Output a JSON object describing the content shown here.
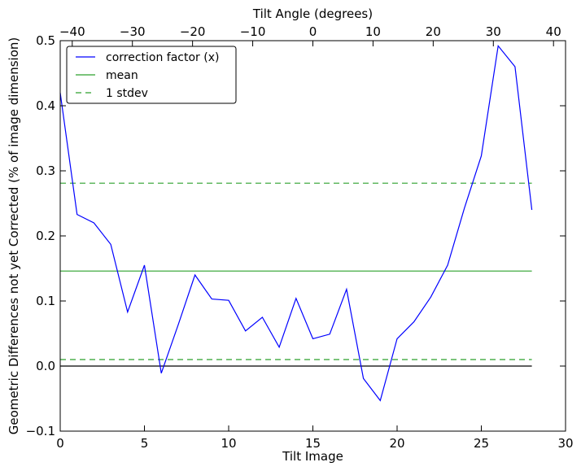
{
  "chart_data": {
    "type": "line",
    "xlabel": "Tilt Image",
    "ylabel": "Geometric Differences not yet Corrected (% of image dimension)",
    "top_xlabel": "Tilt Angle (degrees)",
    "xlim": [
      0,
      30
    ],
    "ylim": [
      -0.1,
      0.5
    ],
    "top_xlim": [
      -42,
      42
    ],
    "x_ticks": [
      0,
      5,
      10,
      15,
      20,
      25,
      30
    ],
    "x_tick_labels": [
      "0",
      "5",
      "10",
      "15",
      "20",
      "25",
      "30"
    ],
    "y_ticks": [
      -0.1,
      0.0,
      0.1,
      0.2,
      0.3,
      0.4,
      0.5
    ],
    "y_tick_labels": [
      "−0.1",
      "0.0",
      "0.1",
      "0.2",
      "0.3",
      "0.4",
      "0.5"
    ],
    "top_ticks": [
      -40,
      -30,
      -20,
      -10,
      0,
      10,
      20,
      30,
      40
    ],
    "top_tick_labels": [
      "−40",
      "−30",
      "−20",
      "−10",
      "0",
      "10",
      "20",
      "30",
      "40"
    ],
    "grid": false,
    "legend_position": "top-left",
    "series": [
      {
        "name": "correction factor (x)",
        "color": "#0000ff",
        "style": "solid",
        "x": [
          0,
          1,
          2,
          3,
          4,
          5,
          6,
          7,
          8,
          9,
          10,
          11,
          12,
          13,
          14,
          15,
          16,
          17,
          18,
          19,
          20,
          21,
          22,
          23,
          24,
          25,
          26,
          27,
          28
        ],
        "values": [
          0.42,
          0.233,
          0.22,
          0.187,
          0.083,
          0.155,
          -0.011,
          0.063,
          0.14,
          0.103,
          0.101,
          0.054,
          0.075,
          0.029,
          0.104,
          0.042,
          0.049,
          0.118,
          -0.019,
          -0.053,
          0.042,
          0.068,
          0.106,
          0.155,
          0.243,
          0.323,
          0.492,
          0.46,
          0.24
        ]
      },
      {
        "name": "mean",
        "color": "#2ca02c",
        "style": "solid",
        "x": [
          0,
          28
        ],
        "values": [
          0.146,
          0.146
        ]
      },
      {
        "name": "1 stdev",
        "color": "#2ca02c",
        "style": "dashed",
        "x": [
          0,
          28
        ],
        "values": [
          0.281,
          0.281
        ]
      },
      {
        "name": "",
        "color": "#2ca02c",
        "style": "dashed",
        "x": [
          0,
          28
        ],
        "values": [
          0.01,
          0.01
        ]
      },
      {
        "name": "",
        "color": "#000000",
        "style": "solid",
        "x": [
          0,
          28
        ],
        "values": [
          0.0,
          0.0
        ]
      }
    ]
  }
}
